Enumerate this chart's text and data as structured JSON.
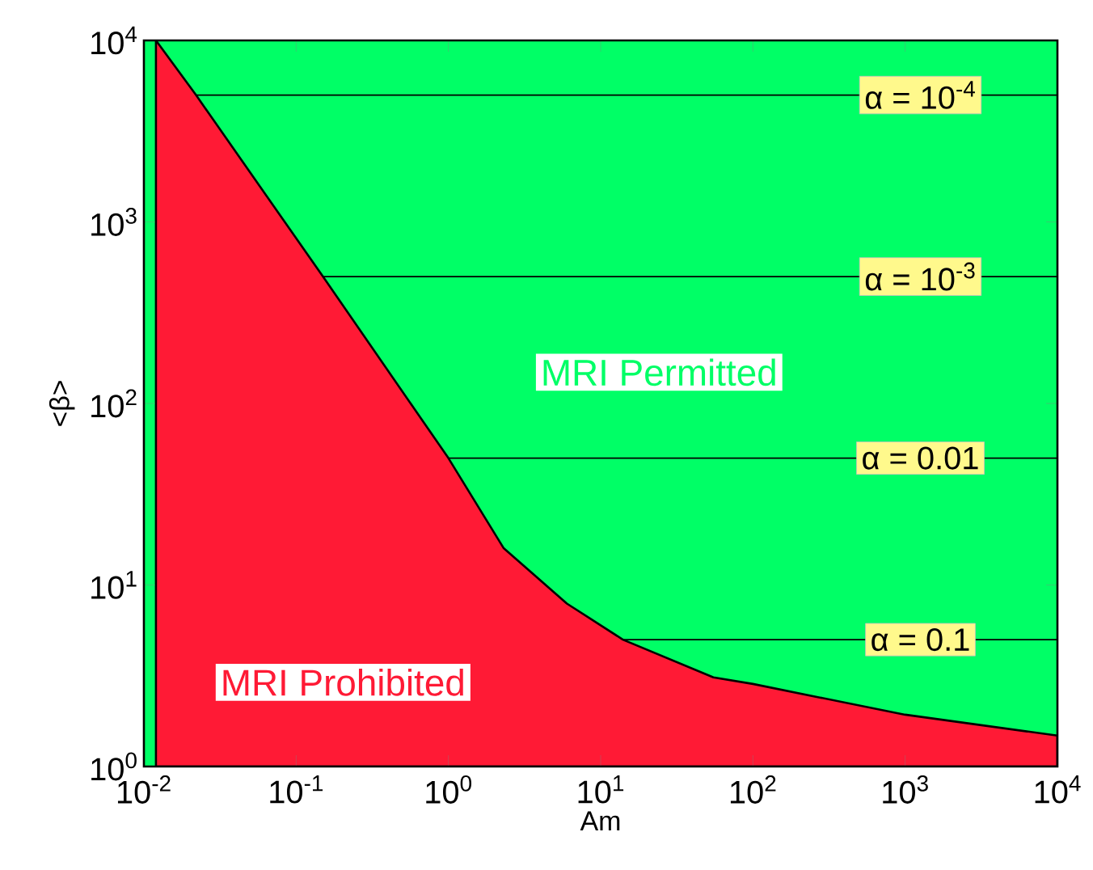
{
  "chart_data": {
    "type": "area",
    "xlabel": "Am",
    "ylabel": "<β>",
    "log": "xy",
    "grid": false,
    "xlim": [
      0.01,
      10000
    ],
    "ylim": [
      1,
      10000
    ],
    "xticks": [
      {
        "value": 0.01,
        "label": "10$^{-2}$"
      },
      {
        "value": 0.1,
        "label": "10$^{-1}$"
      },
      {
        "value": 1,
        "label": "10$^{0}$"
      },
      {
        "value": 10,
        "label": "10$^{1}$"
      },
      {
        "value": 100,
        "label": "10$^{2}$"
      },
      {
        "value": 1000,
        "label": "10$^{3}$"
      },
      {
        "value": 10000,
        "label": "10$^{4}$"
      }
    ],
    "yticks": [
      {
        "value": 1,
        "label": "10$^{0}$"
      },
      {
        "value": 10,
        "label": "10$^{1}$"
      },
      {
        "value": 100,
        "label": "10$^{2}$"
      },
      {
        "value": 1000,
        "label": "10$^{3}$"
      },
      {
        "value": 10000,
        "label": "10$^{4}$"
      }
    ],
    "x": [
      0.012,
      0.022,
      0.15,
      1,
      2.3,
      3.4,
      6,
      10,
      14,
      55,
      100,
      275,
      1000,
      10000
    ],
    "series": [
      {
        "color": "#ff1a35",
        "values": [
          10000,
          5000,
          500,
          50,
          16,
          12,
          7.9,
          6.0,
          5,
          3.1,
          2.85,
          2.4,
          1.93,
          1.48
        ]
      },
      {
        "type": "line",
        "name": "α = 10$^{-4}$",
        "color": "#000000",
        "x": [
          0.022,
          10000
        ],
        "values": [
          5000,
          5000
        ]
      },
      {
        "type": "line",
        "name": "α = 10$^{-3}$",
        "color": "#000000",
        "x": [
          0.15,
          10000
        ],
        "values": [
          500,
          500
        ]
      },
      {
        "type": "line",
        "name": "α = 0.01",
        "color": "#000000",
        "x": [
          1,
          10000
        ],
        "values": [
          50,
          50
        ]
      },
      {
        "type": "line",
        "name": "α = 0.1",
        "color": "#000000",
        "x": [
          14,
          10000
        ],
        "values": [
          5,
          5
        ]
      }
    ],
    "bands": [
      {
        "axis": "y",
        "from": 1,
        "to": 10000,
        "color": "#00ff66"
      }
    ],
    "annotations": [
      "MRI Permitted",
      "MRI Prohibited"
    ]
  }
}
